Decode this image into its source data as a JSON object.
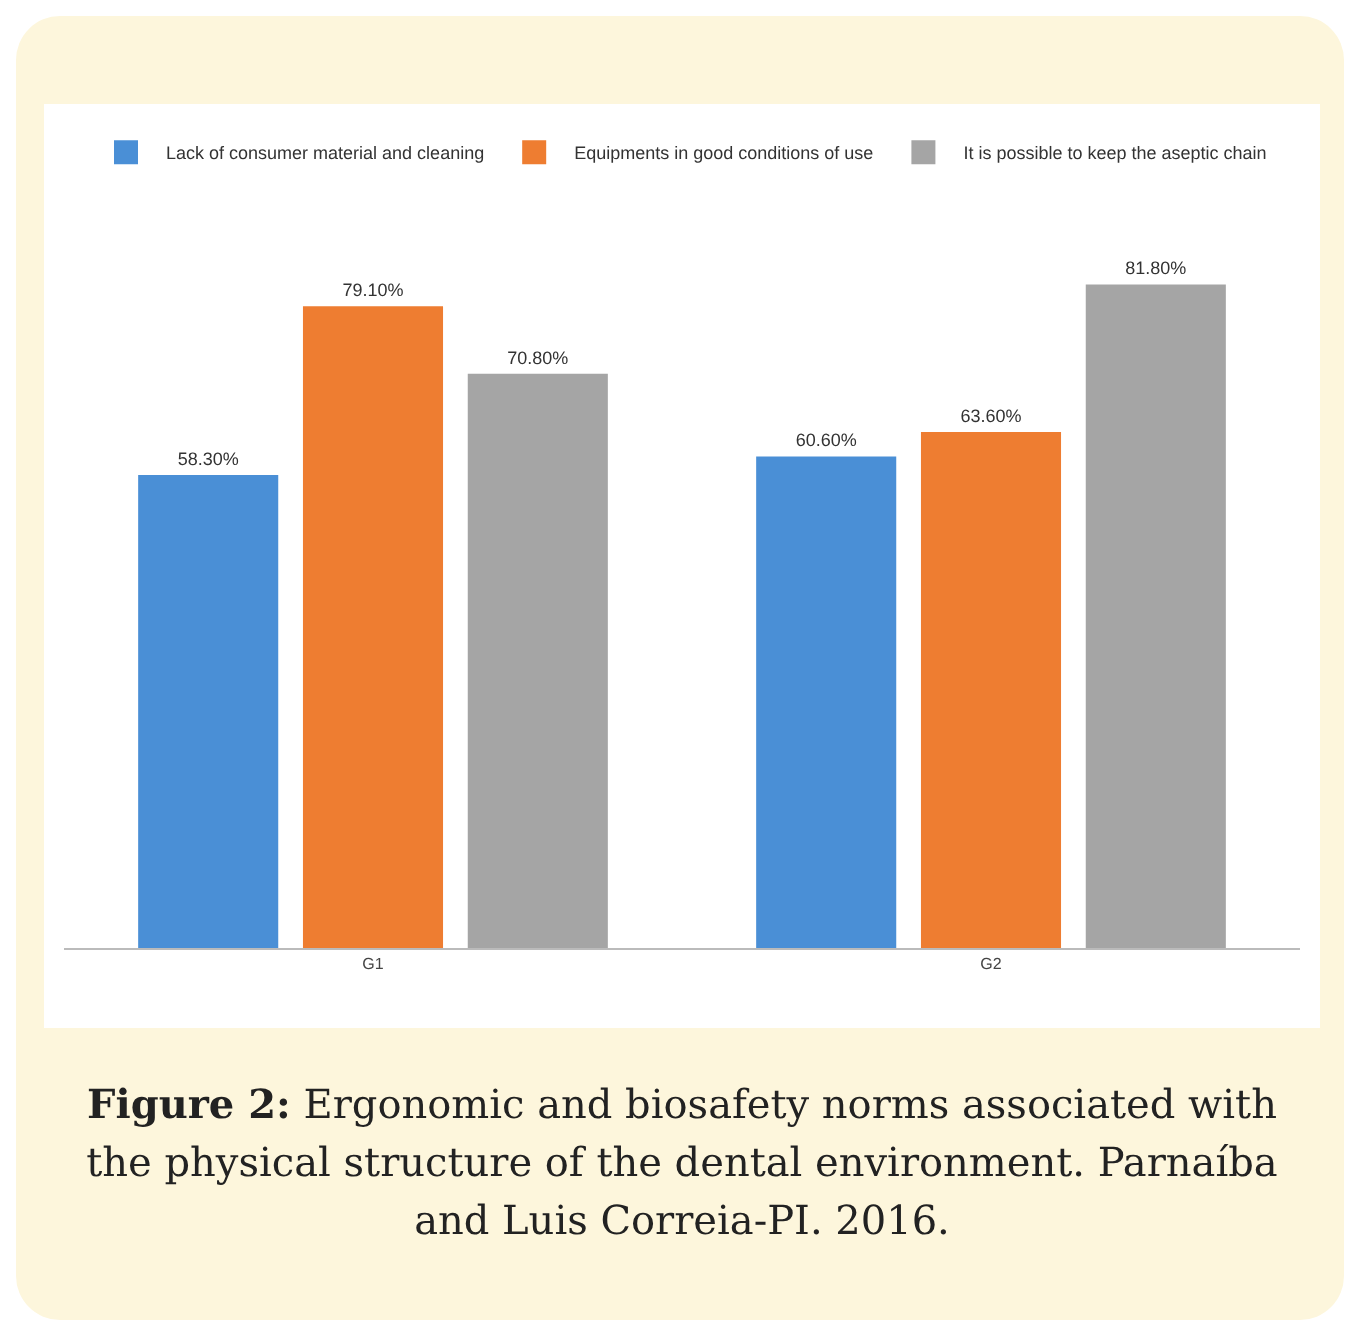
{
  "chart_data": {
    "type": "bar",
    "categories": [
      "G1",
      "G2"
    ],
    "series": [
      {
        "name": "Lack of consumer material and cleaning",
        "color": "#4a8fd6",
        "values": [
          58.3,
          60.6
        ],
        "value_labels": [
          "58.30%",
          "60.60%"
        ]
      },
      {
        "name": "Equipments in good conditions of use",
        "color": "#ee7d31",
        "values": [
          79.1,
          63.6
        ],
        "value_labels": [
          "79.10%",
          "63.60%"
        ]
      },
      {
        "name": "It is possible to keep the aseptic chain",
        "color": "#a5a5a5",
        "values": [
          70.8,
          81.8
        ],
        "value_labels": [
          "70.80%",
          "81.80%"
        ]
      }
    ],
    "grid": false,
    "legend": "top",
    "annotations": [
      "Figure 2: Ergonomic and biosafety norms associated with the physical structure of the dental environment. Parnaíba and Luis Correia-PI. 2016."
    ]
  }
}
